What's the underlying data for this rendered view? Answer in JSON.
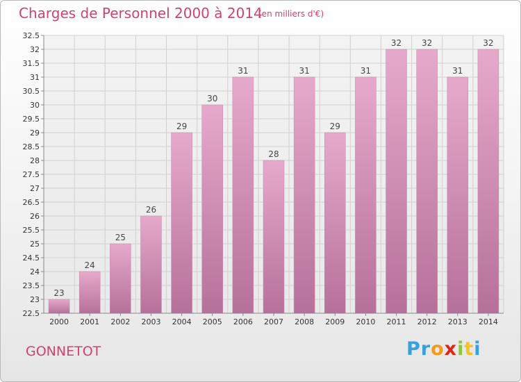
{
  "chart_data": {
    "type": "bar",
    "title": "Charges de Personnel 2000 à 2014",
    "subtitle": "(en milliers d'€)",
    "categories": [
      "2000",
      "2001",
      "2002",
      "2003",
      "2004",
      "2005",
      "2006",
      "2007",
      "2008",
      "2009",
      "2010",
      "2011",
      "2012",
      "2013",
      "2014"
    ],
    "values": [
      23,
      24,
      25,
      26,
      29,
      30,
      31,
      28,
      31,
      29,
      31,
      32,
      32,
      31,
      32
    ],
    "value_labels": [
      "23",
      "24",
      "25",
      "26",
      "29",
      "30",
      "31",
      "28",
      "31",
      "29",
      "31",
      "32",
      "32",
      "31",
      "32"
    ],
    "ylim": [
      22.5,
      32.5
    ],
    "yticks": [
      "22.5",
      "23",
      "23.5",
      "24",
      "24.5",
      "25",
      "25.5",
      "26",
      "26.5",
      "27",
      "27.5",
      "28",
      "28.5",
      "29",
      "29.5",
      "30",
      "30.5",
      "31",
      "31.5",
      "32",
      "32.5"
    ],
    "xlabel": "",
    "ylabel": "",
    "grid": true,
    "colors": {
      "bar": "#d08bb4",
      "bar_light": "#e6a9cb",
      "title": "#d2416f",
      "grid": "#d0d0d0"
    }
  },
  "footer": {
    "commune": "GONNETOT",
    "logo": {
      "p1": "Pr",
      "p2": "o",
      "p3": "x",
      "p4": "i",
      "p5": "t",
      "p6": "i"
    }
  }
}
